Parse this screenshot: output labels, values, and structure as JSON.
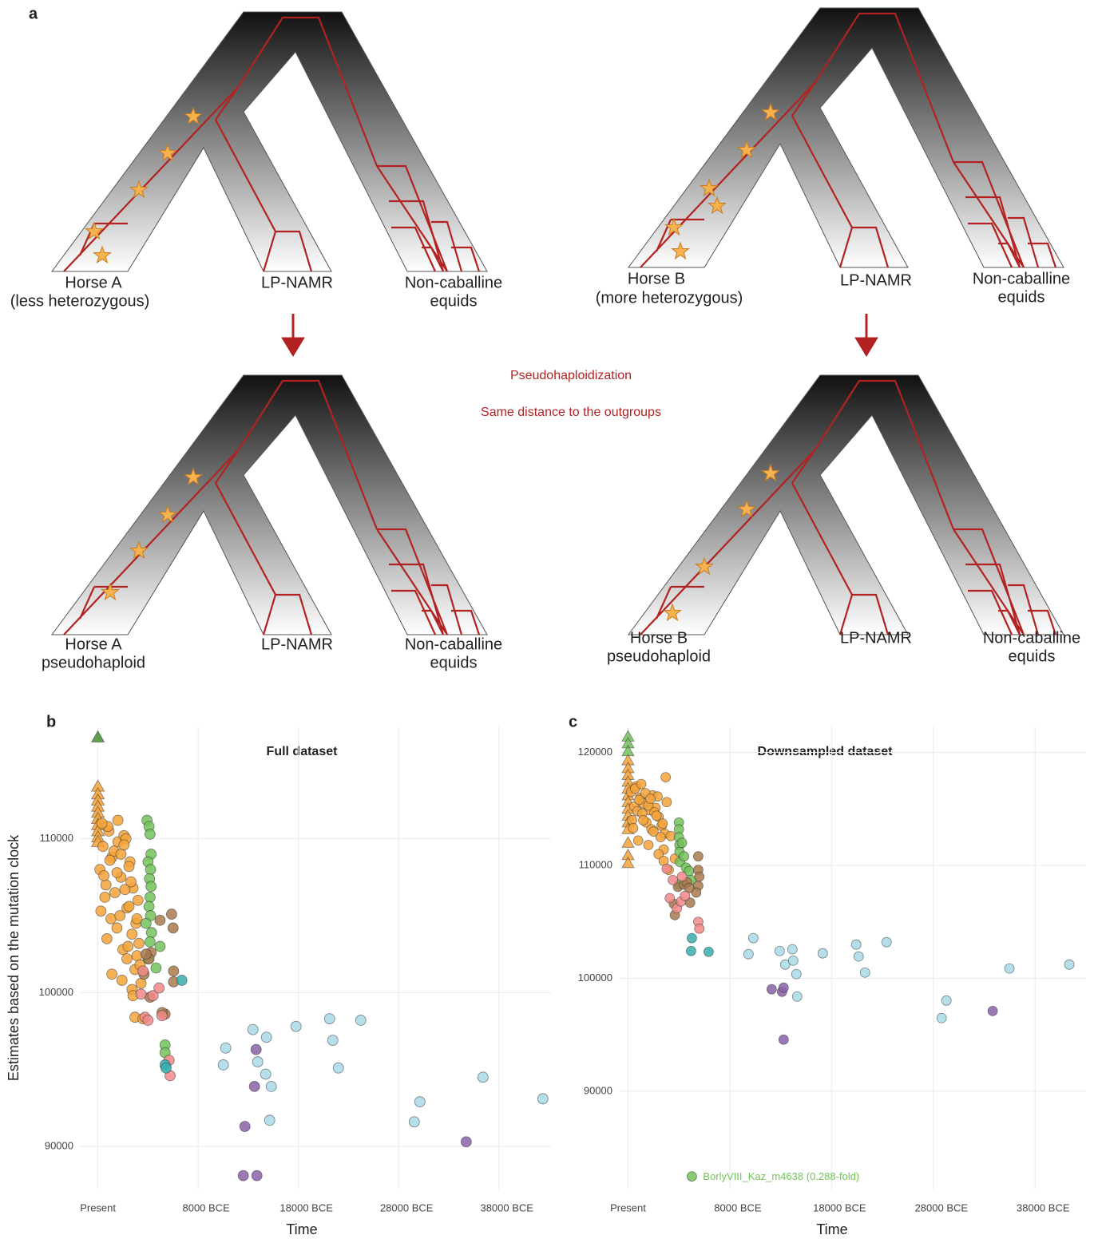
{
  "panel_a": {
    "label": "a",
    "trees": [
      {
        "labels": [
          "Horse A",
          "(less heterozygous)",
          "LP-NAMR",
          "Non-caballine",
          "equids"
        ]
      },
      {
        "labels": [
          "Horse B",
          "(more heterozygous)",
          "LP-NAMR",
          "Non-caballine",
          "equids"
        ]
      },
      {
        "labels": [
          "Horse A",
          "pseudohaploid",
          "LP-NAMR",
          "Non-caballine",
          "equids"
        ]
      },
      {
        "labels": [
          "Horse B",
          "pseudohaploid",
          "LP-NAMR",
          "Non-caballine",
          "equids"
        ]
      }
    ],
    "center_texts": [
      "Pseudohaploidization",
      "Same distance to the outgroups"
    ]
  },
  "chart_data": [
    {
      "type": "scatter",
      "panel_label": "b",
      "title": "Full dataset",
      "x_label": "Time",
      "y_label": "Estimates based on the mutation clock",
      "xlim": [
        -3800,
        43200
      ],
      "ylim": [
        87200,
        117300
      ],
      "xticks": [
        {
          "value": -2000,
          "label": "Present"
        },
        {
          "value": 8000,
          "label": "8000 BCE"
        },
        {
          "value": 18000,
          "label": "18000 BCE"
        },
        {
          "value": 28000,
          "label": "28000 BCE"
        },
        {
          "value": 38000,
          "label": "38000 BCE"
        }
      ],
      "yticks": [
        90000,
        100000,
        110000
      ],
      "grid": true,
      "series": [
        {
          "color": "#3f8f2f",
          "marker": "triangle",
          "x": [
            -2000
          ],
          "values": [
            116600
          ]
        },
        {
          "color": "#f5a33a",
          "marker": "triangle",
          "x": [
            -2000,
            -2000,
            -2000,
            -2000,
            -2000,
            -2000,
            -2000,
            -2000,
            -2000,
            -2000
          ],
          "values": [
            113400,
            112900,
            112500,
            112100,
            111700,
            111300,
            110900,
            110500,
            110100,
            109800
          ]
        },
        {
          "color": "#f5a33a",
          "marker": "circle",
          "x": [
            -1800,
            -1500,
            -1200,
            -900,
            -600,
            -300,
            0,
            300,
            600,
            900,
            1200,
            1500,
            1800,
            2100,
            -1700,
            -1300,
            -1000,
            -700,
            -400,
            -100,
            200,
            500,
            800,
            1100,
            1400,
            1700,
            2000,
            -1600,
            -1100,
            -600,
            -100,
            400,
            900,
            1400,
            1900,
            300,
            700,
            1100,
            1500,
            1900,
            2300,
            -1400,
            -800,
            0,
            600,
            1000,
            1300,
            1700,
            2200,
            2500
          ],
          "values": [
            108000,
            109500,
            107000,
            110500,
            108800,
            106500,
            109800,
            107500,
            110200,
            105500,
            108500,
            106800,
            104500,
            103200,
            105300,
            106200,
            110800,
            104800,
            109200,
            107800,
            105000,
            102800,
            110000,
            108200,
            103800,
            101500,
            106000,
            111000,
            103500,
            101200,
            104200,
            100800,
            102200,
            100200,
            104800,
            109000,
            106700,
            105600,
            99800,
            102400,
            100600,
            107600,
            108600,
            111200,
            109600,
            103000,
            107200,
            98400,
            101800,
            98300
          ]
        },
        {
          "color": "#72c25a",
          "marker": "circle",
          "x": [
            2900,
            3100,
            3200,
            3300,
            3000,
            3250,
            3150,
            3300,
            3200,
            3100,
            3250,
            2800,
            3350,
            3200,
            3000,
            4700,
            4700,
            4200,
            3800
          ],
          "values": [
            111200,
            110800,
            110300,
            109000,
            108500,
            108000,
            107400,
            106900,
            106200,
            105600,
            105000,
            104500,
            103900,
            103300,
            102200,
            96600,
            96100,
            103000,
            101600
          ]
        },
        {
          "color": "#a87a4e",
          "marker": "circle",
          "x": [
            5350,
            5500,
            5550,
            5550,
            4700,
            4400,
            3300,
            3100,
            2800,
            4200,
            2600,
            3200
          ],
          "values": [
            105100,
            104200,
            101400,
            100700,
            98600,
            98700,
            102600,
            102200,
            102500,
            104700,
            101200,
            99700
          ]
        },
        {
          "color": "#f08a88",
          "marker": "circle",
          "x": [
            5100,
            5200,
            2700,
            3000,
            3500,
            4100,
            4400,
            2300,
            2500
          ],
          "values": [
            95600,
            94600,
            98400,
            98200,
            99800,
            100300,
            98500,
            99900,
            101400
          ]
        },
        {
          "color": "#3aaeae",
          "marker": "circle",
          "x": [
            4700,
            4800,
            6370
          ],
          "values": [
            95300,
            95100,
            100800
          ]
        },
        {
          "color": "#a8dbe8",
          "marker": "circle",
          "x": [
            10752,
            10513,
            13462,
            14817,
            13940,
            14737,
            15295,
            15136,
            17766,
            21113,
            21432,
            21990,
            24221,
            30119,
            29561,
            36415,
            42393
          ],
          "values": [
            96400,
            95300,
            97600,
            97100,
            95500,
            94700,
            93900,
            91700,
            97800,
            98300,
            96900,
            95100,
            98200,
            92900,
            91600,
            94500,
            93100
          ]
        },
        {
          "color": "#8a62a8",
          "marker": "circle",
          "x": [
            13781,
            13621,
            12665,
            12505,
            13860,
            34742
          ],
          "values": [
            96300,
            93900,
            91300,
            88100,
            88100,
            90300
          ]
        }
      ]
    },
    {
      "type": "scatter",
      "panel_label": "c",
      "title": "Downsampled dataset",
      "x_label": "Time",
      "xlim": [
        -2900,
        43000
      ],
      "ylim": [
        81300,
        122300
      ],
      "xticks": [
        {
          "value": -2000,
          "label": "Present"
        },
        {
          "value": 8000,
          "label": "8000 BCE"
        },
        {
          "value": 18000,
          "label": "18000 BCE"
        },
        {
          "value": 28000,
          "label": "28000 BCE"
        },
        {
          "value": 38000,
          "label": "38000 BCE"
        }
      ],
      "yticks": [
        90000,
        100000,
        110000,
        120000
      ],
      "grid": true,
      "series": [
        {
          "color": "#72c25a",
          "marker": "triangle",
          "x": [
            -2000,
            -2000,
            -2000
          ],
          "values": [
            121400,
            120800,
            120100
          ]
        },
        {
          "color": "#f5a33a",
          "marker": "triangle",
          "x": [
            -2000,
            -2000,
            -2000,
            -2000,
            -2000,
            -2000,
            -2000,
            -2000,
            -2000,
            -2000,
            -2000,
            -2000,
            -2000,
            -2000
          ],
          "values": [
            119300,
            118600,
            118000,
            117400,
            116800,
            116200,
            115600,
            115000,
            114400,
            113800,
            113200,
            112000,
            110900,
            110200
          ]
        },
        {
          "color": "#f5a33a",
          "marker": "circle",
          "x": [
            -1700,
            -1400,
            -1100,
            -800,
            -500,
            -200,
            100,
            400,
            700,
            1000,
            1300,
            1600,
            -1600,
            -1200,
            -900,
            -600,
            -300,
            0,
            300,
            600,
            900,
            1200,
            1500,
            1800,
            -1500,
            -1000,
            -500,
            0,
            500,
            1000,
            1500,
            -1300,
            -700,
            200,
            800,
            1400,
            1700,
            2200,
            2600,
            2000
          ],
          "values": [
            116500,
            115200,
            114800,
            116000,
            115500,
            113800,
            114900,
            116200,
            115100,
            114300,
            113500,
            112800,
            114000,
            117000,
            115800,
            114600,
            116400,
            115300,
            113200,
            114700,
            116100,
            112500,
            111400,
            115600,
            113300,
            112200,
            114000,
            111800,
            113000,
            111000,
            110400,
            116800,
            117200,
            115900,
            114400,
            113700,
            117800,
            112600,
            110600,
            109600
          ]
        },
        {
          "color": "#72c25a",
          "marker": "circle",
          "x": [
            3000,
            3000,
            3000,
            3050,
            3050,
            3100,
            3700,
            4000,
            4200,
            3000,
            3500,
            3300
          ],
          "values": [
            113800,
            113200,
            112500,
            111800,
            111200,
            110300,
            109800,
            109500,
            108700,
            108300,
            110800,
            112000
          ]
        },
        {
          "color": "#a87a4e",
          "marker": "circle",
          "x": [
            4900,
            4900,
            4900,
            4700,
            4100,
            2900,
            2500,
            2600,
            5000,
            3500,
            3800,
            4000
          ],
          "values": [
            110800,
            109600,
            108200,
            107600,
            106700,
            108100,
            106600,
            105600,
            109000,
            108300,
            108500,
            108000
          ]
        },
        {
          "color": "#f08a88",
          "marker": "circle",
          "x": [
            1800,
            2100,
            2800,
            3200,
            4900,
            5000,
            2400,
            3300,
            3600
          ],
          "values": [
            109700,
            107100,
            106200,
            106800,
            105000,
            104400,
            108700,
            109000,
            107300
          ]
        },
        {
          "color": "#3aaeae",
          "marker": "circle",
          "x": [
            4272,
            4194,
            5918
          ],
          "values": [
            103560,
            102420,
            102350
          ]
        },
        {
          "color": "#a8dbe8",
          "marker": "circle",
          "x": [
            9838,
            10309,
            12896,
            13445,
            14150,
            14229,
            14542,
            14621,
            17130,
            20422,
            20658,
            21285,
            23402,
            29282,
            28811,
            35475,
            41355
          ],
          "values": [
            102140,
            103560,
            102420,
            101220,
            102570,
            101570,
            100370,
            98390,
            102210,
            102990,
            101930,
            100510,
            103200,
            98030,
            96480,
            100870,
            101220
          ]
        },
        {
          "color": "#8a62a8",
          "marker": "circle",
          "x": [
            12112,
            13131,
            13288,
            13288,
            33829
          ],
          "values": [
            99030,
            98810,
            99170,
            94570,
            97110
          ]
        },
        {
          "color": "#72c25a",
          "marker": "circle",
          "x": [
            4272
          ],
          "values": [
            82460
          ],
          "point_labels": [
            "BorlyVIII_Kaz_m4638 (0.288-fold)"
          ]
        }
      ]
    }
  ]
}
